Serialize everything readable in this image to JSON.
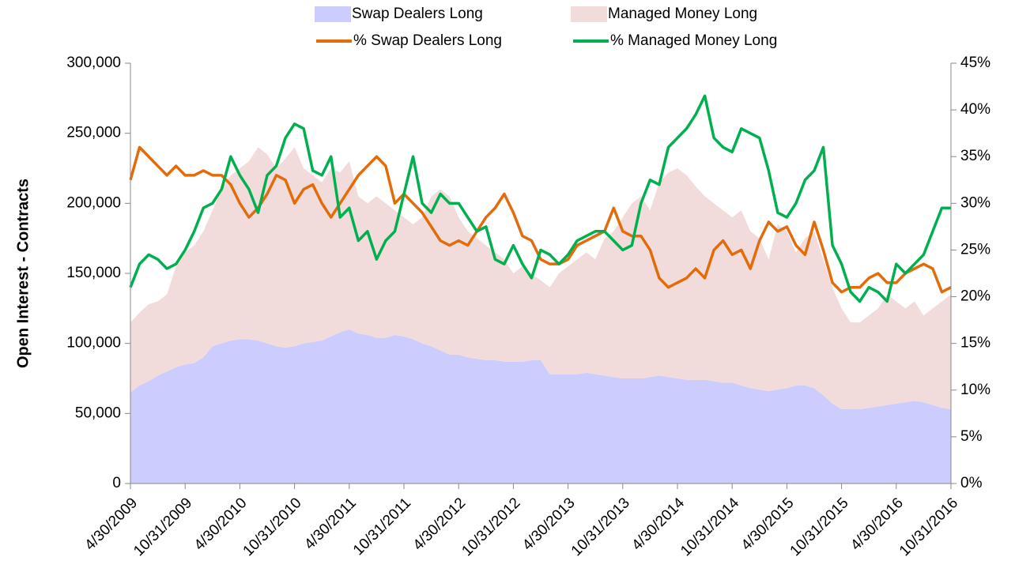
{
  "chart_data": {
    "type": "area",
    "y_label": "Open Interest - Contracts",
    "legend": "top",
    "stacked": true,
    "categories": [
      "4/30/2009",
      null,
      null,
      null,
      null,
      null,
      "10/31/2009",
      null,
      null,
      null,
      null,
      null,
      "4/30/2010",
      null,
      null,
      null,
      null,
      null,
      "10/31/2010",
      null,
      null,
      null,
      null,
      null,
      "4/30/2011",
      null,
      null,
      null,
      null,
      null,
      "10/31/2011",
      null,
      null,
      null,
      null,
      null,
      "4/30/2012",
      null,
      null,
      null,
      null,
      null,
      "10/31/2012",
      null,
      null,
      null,
      null,
      null,
      "4/30/2013",
      null,
      null,
      null,
      null,
      null,
      "10/31/2013",
      null,
      null,
      null,
      null,
      null,
      "4/30/2014",
      null,
      null,
      null,
      null,
      null,
      "10/31/2014",
      null,
      null,
      null,
      null,
      null,
      "4/30/2015",
      null,
      null,
      null,
      null,
      null,
      "10/31/2015",
      null,
      null,
      null,
      null,
      null,
      "4/30/2016",
      null,
      null,
      null,
      null,
      null,
      "10/31/2016"
    ],
    "ylim": [
      0,
      300000
    ],
    "yticks": [
      0,
      {
        "value": 50000,
        "label": "50,000"
      },
      {
        "value": 100000,
        "label": "100,000"
      },
      {
        "value": 150000,
        "label": "150,000"
      },
      {
        "value": 200000,
        "label": "200,000"
      },
      {
        "value": 250000,
        "label": "250,000"
      },
      {
        "value": 300000,
        "label": "300,000"
      }
    ],
    "y2lim": [
      0,
      45
    ],
    "y2ticks": [
      {
        "value": 0,
        "label": "0%"
      },
      {
        "value": 5,
        "label": "5%"
      },
      {
        "value": 10,
        "label": "10%"
      },
      {
        "value": 15,
        "label": "15%"
      },
      {
        "value": 20,
        "label": "20%"
      },
      {
        "value": 25,
        "label": "25%"
      },
      {
        "value": 30,
        "label": "30%"
      },
      {
        "value": 35,
        "label": "35%"
      },
      {
        "value": 40,
        "label": "40%"
      },
      {
        "value": 45,
        "label": "45%"
      }
    ],
    "series": [
      {
        "name": "Swap Dealers Long",
        "type": "area",
        "color": "#ccccff",
        "values": [
          65000,
          70000,
          73000,
          77000,
          80000,
          83000,
          85000,
          86000,
          90000,
          98000,
          100000,
          102000,
          103000,
          103000,
          102000,
          100000,
          98000,
          97000,
          98000,
          100000,
          101000,
          102000,
          105000,
          108000,
          110000,
          107000,
          106000,
          104000,
          104000,
          106000,
          105000,
          103000,
          100000,
          98000,
          95000,
          92000,
          92000,
          90000,
          89000,
          88000,
          88000,
          87000,
          87000,
          87000,
          88000,
          88000,
          78000,
          78000,
          78000,
          78000,
          79000,
          78000,
          77000,
          76000,
          75000,
          75000,
          75000,
          76000,
          77000,
          76000,
          75000,
          74000,
          74000,
          74000,
          73000,
          72000,
          72000,
          70000,
          68000,
          67000,
          66000,
          67000,
          68000,
          70000,
          70000,
          68000,
          63000,
          57000,
          53000,
          53000,
          53000,
          54000,
          55000,
          56000,
          57000,
          58000,
          59000,
          58000,
          56000,
          54000,
          53000
        ]
      },
      {
        "name": "Managed Money Long",
        "type": "area",
        "color": "#f2dcdb",
        "values": [
          50000,
          52000,
          55000,
          53000,
          55000,
          72000,
          80000,
          84000,
          90000,
          97000,
          110000,
          118000,
          122000,
          127000,
          138000,
          135000,
          127000,
          135000,
          142000,
          125000,
          119000,
          113000,
          120000,
          114000,
          120000,
          98000,
          94000,
          101000,
          96000,
          89000,
          85000,
          82000,
          90000,
          107000,
          115000,
          113000,
          98000,
          90000,
          86000,
          82000,
          77000,
          73000,
          63000,
          68000,
          62000,
          57000,
          62000,
          72000,
          77000,
          82000,
          86000,
          82000,
          98000,
          104000,
          115000,
          125000,
          130000,
          119000,
          138000,
          146000,
          150000,
          146000,
          138000,
          131000,
          127000,
          123000,
          118000,
          125000,
          112000,
          108000,
          94000,
          118000,
          112000,
          95000,
          105000,
          112000,
          97000,
          83000,
          72000,
          62000,
          62000,
          66000,
          70000,
          79000,
          73000,
          67000,
          71000,
          62000,
          69000,
          76000,
          82000
        ]
      },
      {
        "name": "% Swap Dealers Long",
        "type": "line",
        "axis": "y2",
        "color": "#e36c0a",
        "values": [
          32.5,
          36,
          35,
          34,
          33,
          34,
          33,
          33,
          33.5,
          33,
          33,
          32,
          30,
          28.5,
          29.5,
          31,
          33,
          32.5,
          30,
          31.5,
          32,
          30,
          28.5,
          30,
          31.5,
          33,
          34,
          35,
          34,
          30,
          31,
          30,
          29,
          27.5,
          26,
          25.5,
          26,
          25.5,
          27,
          28.5,
          29.5,
          31,
          29,
          26.5,
          26,
          24,
          23.5,
          23.5,
          24,
          25.5,
          26,
          26.5,
          27,
          29.5,
          27,
          26.5,
          26.5,
          25,
          22,
          21,
          21.5,
          22,
          23,
          22,
          25,
          26,
          24.5,
          25,
          23,
          26,
          28,
          27,
          27.5,
          25.5,
          24.5,
          28,
          25,
          21.5,
          20.5,
          21,
          21,
          22,
          22.5,
          21.5,
          21.5,
          22.5,
          23,
          23.5,
          23,
          20.5,
          21
        ]
      },
      {
        "name": "% Managed Money Long",
        "type": "line",
        "axis": "y2",
        "color": "#00b050",
        "values": [
          21,
          23.5,
          24.5,
          24,
          23,
          23.5,
          25,
          27,
          29.5,
          30,
          31.5,
          35,
          33,
          31.5,
          29,
          33,
          34,
          37,
          38.5,
          38,
          33.5,
          33,
          35,
          28.5,
          29.5,
          26,
          27,
          24,
          26,
          27,
          31,
          35,
          30,
          29,
          31,
          30,
          30,
          28.5,
          27,
          27.5,
          24,
          23.5,
          25.5,
          23.5,
          22,
          25,
          24.5,
          23.5,
          24.5,
          26,
          26.5,
          27,
          27,
          26,
          25,
          25.5,
          30,
          32.5,
          32,
          36,
          37,
          38,
          39.5,
          41.5,
          37,
          36,
          35.5,
          38,
          37.5,
          37,
          33.5,
          29,
          28.5,
          30,
          32.5,
          33.5,
          36,
          25.5,
          23.5,
          20.5,
          19.5,
          21,
          20.5,
          19.5,
          23.5,
          22.5,
          23.5,
          24.5,
          27,
          29.5,
          29.5
        ]
      }
    ]
  }
}
